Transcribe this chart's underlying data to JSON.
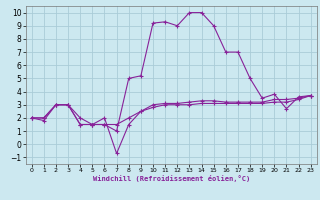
{
  "xlabel": "Windchill (Refroidissement éolien,°C)",
  "background_color": "#cce8f0",
  "grid_color": "#aaccd8",
  "line_color": "#882299",
  "xlim": [
    -0.5,
    23.5
  ],
  "ylim": [
    -1.5,
    10.5
  ],
  "xticks": [
    0,
    1,
    2,
    3,
    4,
    5,
    6,
    7,
    8,
    9,
    10,
    11,
    12,
    13,
    14,
    15,
    16,
    17,
    18,
    19,
    20,
    21,
    22,
    23
  ],
  "yticks": [
    -1,
    0,
    1,
    2,
    3,
    4,
    5,
    6,
    7,
    8,
    9,
    10
  ],
  "series": [
    [
      2.0,
      1.8,
      3.0,
      3.0,
      1.5,
      1.5,
      1.5,
      1.0,
      5.0,
      5.2,
      9.2,
      9.3,
      9.0,
      10.0,
      10.0,
      9.0,
      7.0,
      7.0,
      5.0,
      3.5,
      3.8,
      2.7,
      3.6,
      3.7
    ],
    [
      2.0,
      2.0,
      3.0,
      3.0,
      2.0,
      1.5,
      2.0,
      -0.7,
      1.5,
      2.5,
      3.0,
      3.1,
      3.1,
      3.2,
      3.3,
      3.3,
      3.2,
      3.2,
      3.2,
      3.2,
      3.4,
      3.4,
      3.5,
      3.7
    ],
    [
      2.0,
      2.0,
      3.0,
      3.0,
      1.5,
      1.5,
      1.5,
      1.5,
      2.0,
      2.5,
      2.8,
      3.0,
      3.0,
      3.0,
      3.1,
      3.1,
      3.1,
      3.1,
      3.1,
      3.1,
      3.2,
      3.2,
      3.4,
      3.7
    ]
  ]
}
